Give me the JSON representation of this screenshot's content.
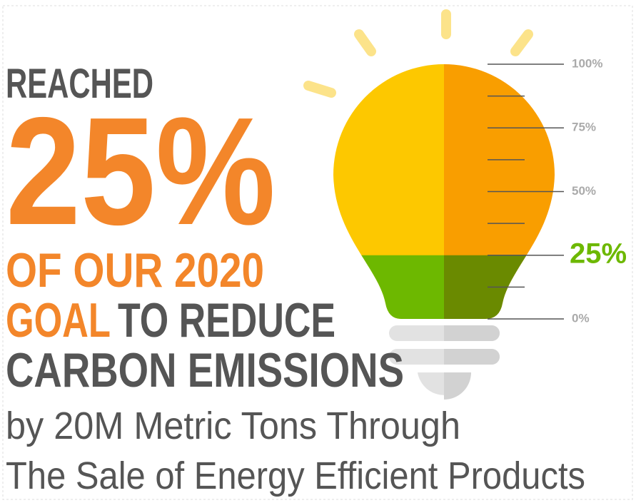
{
  "chart_data": {
    "type": "bulb",
    "headline": [
      "REACHED",
      "25%"
    ],
    "goal_lines": [
      "OF OUR 2020",
      "GOAL",
      "TO REDUCE",
      "CARBON EMISSIONS"
    ],
    "detail_lines": [
      "by 20M Metric Tons Through",
      "The Sale of Energy Efficient Products"
    ],
    "values": [
      25
    ],
    "value_labels": [
      "25%"
    ],
    "ylim": [
      0,
      100
    ],
    "yticks": [
      {
        "value": 0,
        "label": "0%"
      },
      {
        "value": 25,
        "label": "25%"
      },
      {
        "value": 50,
        "label": "50%"
      },
      {
        "value": 75,
        "label": "75%"
      },
      {
        "value": 100,
        "label": "100%"
      }
    ],
    "minor_yticks": [
      12.5,
      37.5,
      62.5,
      87.5
    ],
    "colors": {
      "fill": "#6db800",
      "fill_dark": "#6a8a00",
      "empty": "#fdc800",
      "empty_dark": "#f99e00"
    }
  }
}
